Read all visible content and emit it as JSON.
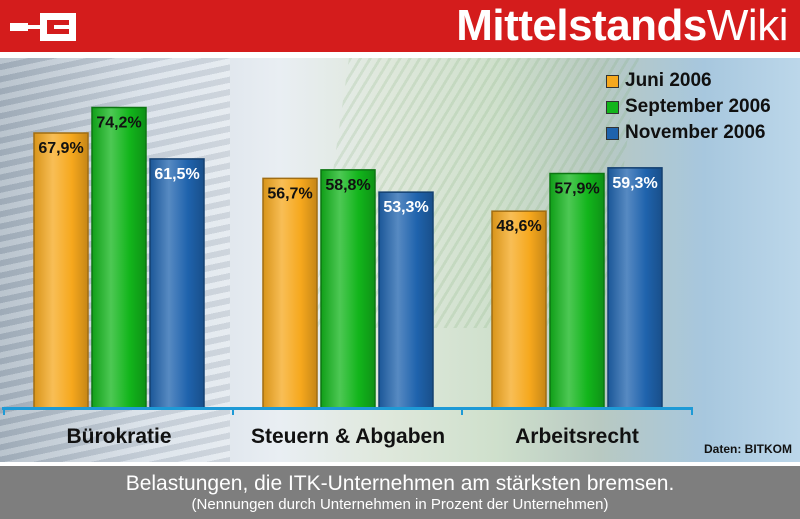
{
  "header": {
    "brand_bold": "Mittelstands",
    "brand_light": "Wiki",
    "logo_icon": "mittelstandswiki-logo-icon"
  },
  "chart_data": {
    "type": "bar",
    "categories": [
      "Bürokratie",
      "Steuern & Abgaben",
      "Arbeitsrecht"
    ],
    "series": [
      {
        "name": "Juni 2006",
        "values": [
          67.9,
          56.7,
          48.6
        ],
        "labels": [
          "67,9%",
          "56,7%",
          "48,6%"
        ],
        "color": "#f6a81d"
      },
      {
        "name": "September 2006",
        "values": [
          74.2,
          58.8,
          57.9
        ],
        "labels": [
          "74,2%",
          "58,8%",
          "57,9%"
        ],
        "color": "#12b51b"
      },
      {
        "name": "November 2006",
        "values": [
          61.5,
          53.3,
          59.3
        ],
        "labels": [
          "61,5%",
          "53,3%",
          "59,3%"
        ],
        "color": "#1f63ad"
      }
    ],
    "ylim": [
      0,
      80
    ],
    "grid": false,
    "legend_position": "top-right",
    "source": "Daten: BITKOM"
  },
  "caption": {
    "title": "Belastungen, die ITK-Unternehmen am stärksten bremsen.",
    "subtitle": "(Nennungen durch Unternehmen in Prozent der Unternehmen)"
  }
}
